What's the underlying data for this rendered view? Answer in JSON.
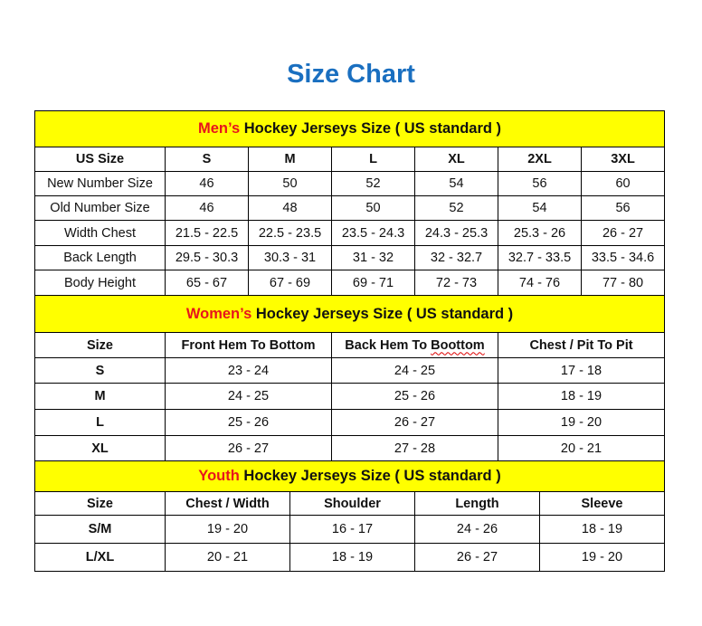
{
  "title": "Size Chart",
  "colors": {
    "title": "#1a6fc0",
    "header_bg": "#ffff00",
    "highlight": "#e8141c"
  },
  "sections": [
    {
      "highlight": "Men’s",
      "heading": " Hockey Jerseys Size ( US standard )",
      "columns": [
        "US Size",
        "S",
        "M",
        "L",
        "XL",
        "2XL",
        "3XL"
      ],
      "rows": [
        [
          "New Number Size",
          "46",
          "50",
          "52",
          "54",
          "56",
          "60"
        ],
        [
          "Old Number Size",
          "46",
          "48",
          "50",
          "52",
          "54",
          "56"
        ],
        [
          "Width Chest",
          "21.5 - 22.5",
          "22.5 - 23.5",
          "23.5 - 24.3",
          "24.3 - 25.3",
          "25.3 - 26",
          "26 - 27"
        ],
        [
          "Back Length",
          "29.5 - 30.3",
          "30.3 - 31",
          "31 - 32",
          "32 - 32.7",
          "32.7 - 33.5",
          "33.5 - 34.6"
        ],
        [
          "Body Height",
          "65 - 67",
          "67 - 69",
          "69 - 71",
          "72 - 73",
          "74 - 76",
          "77 - 80"
        ]
      ]
    },
    {
      "highlight": "Women’s",
      "heading": " Hockey Jerseys Size ( US standard )",
      "columns": [
        "Size",
        "Front Hem To Bottom",
        "Back Hem To Boottom",
        "Chest / Pit To Pit"
      ],
      "rows": [
        [
          "S",
          "23 - 24",
          "24 - 25",
          "17 - 18"
        ],
        [
          "M",
          "24 - 25",
          "25 - 26",
          "18 - 19"
        ],
        [
          "L",
          "25 - 26",
          "26 - 27",
          "19 - 20"
        ],
        [
          "XL",
          "26 - 27",
          "27 - 28",
          "20 - 21"
        ]
      ]
    },
    {
      "highlight": "Youth",
      "heading": " Hockey Jerseys Size ( US standard )",
      "columns": [
        "Size",
        "Chest / Width",
        "Shoulder",
        "Length",
        "Sleeve"
      ],
      "rows": [
        [
          "S/M",
          "19 - 20",
          "16 - 17",
          "24 - 26",
          "18 - 19"
        ],
        [
          "L/XL",
          "20 - 21",
          "18 - 19",
          "26 - 27",
          "19 - 20"
        ]
      ]
    }
  ]
}
